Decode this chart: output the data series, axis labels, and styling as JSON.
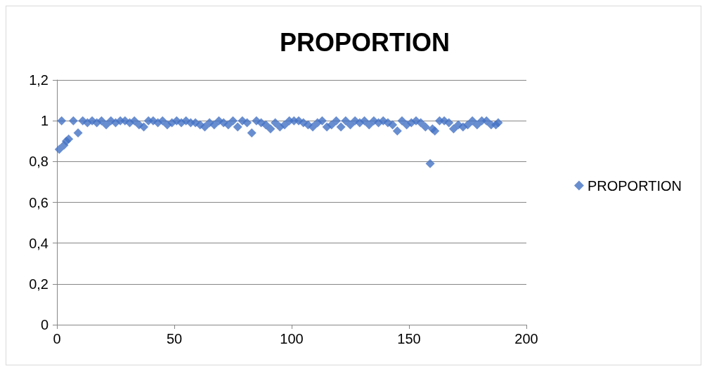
{
  "chart_data": {
    "type": "scatter",
    "title": "PROPORTION",
    "series": [
      {
        "name": "PROPORTION",
        "color": "#4472c4",
        "x": [
          1,
          2,
          3,
          4,
          5,
          7,
          9,
          11,
          13,
          15,
          17,
          19,
          21,
          23,
          25,
          27,
          29,
          31,
          33,
          35,
          37,
          39,
          41,
          43,
          45,
          47,
          49,
          51,
          53,
          55,
          57,
          59,
          61,
          63,
          65,
          67,
          69,
          71,
          73,
          75,
          77,
          79,
          81,
          83,
          85,
          87,
          89,
          91,
          93,
          95,
          97,
          99,
          101,
          103,
          105,
          107,
          109,
          111,
          113,
          115,
          117,
          119,
          121,
          123,
          125,
          127,
          129,
          131,
          133,
          135,
          137,
          139,
          141,
          143,
          145,
          147,
          149,
          151,
          153,
          155,
          157,
          159,
          160,
          161,
          163,
          165,
          167,
          169,
          171,
          173,
          175,
          177,
          179,
          181,
          183,
          185,
          187,
          188
        ],
        "values": [
          0.86,
          1,
          0.88,
          0.9,
          0.91,
          1,
          0.94,
          1,
          0.99,
          1,
          0.99,
          1,
          0.98,
          1,
          0.99,
          1,
          1,
          0.99,
          1,
          0.98,
          0.97,
          1,
          1,
          0.99,
          1,
          0.98,
          0.99,
          1,
          0.99,
          1,
          0.99,
          0.99,
          0.98,
          0.97,
          0.99,
          0.98,
          1,
          0.99,
          0.98,
          1,
          0.97,
          1,
          0.99,
          0.94,
          1,
          0.99,
          0.98,
          0.96,
          0.99,
          0.97,
          0.98,
          1,
          1,
          1,
          0.99,
          0.98,
          0.97,
          0.99,
          1,
          0.97,
          0.98,
          1,
          0.97,
          1,
          0.98,
          1,
          0.99,
          1,
          0.98,
          1,
          0.99,
          1,
          0.99,
          0.98,
          0.95,
          1,
          0.98,
          0.99,
          1,
          0.99,
          0.97,
          0.79,
          0.96,
          0.95,
          1,
          1,
          0.99,
          0.96,
          0.98,
          0.97,
          0.98,
          1,
          0.98,
          1,
          1,
          0.98,
          0.98,
          0.99
        ]
      }
    ],
    "xlim": [
      0,
      200
    ],
    "xticks": [
      0,
      50,
      100,
      150,
      200
    ],
    "ylim": [
      0,
      1.2
    ],
    "yticks": [
      0,
      {
        "value": 0.2,
        "label": "0,2"
      },
      {
        "value": 0.4,
        "label": "0,4"
      },
      {
        "value": 0.6,
        "label": "0,6"
      },
      {
        "value": 0.8,
        "label": "0,8"
      },
      1,
      {
        "value": 1.2,
        "label": "1,2"
      }
    ],
    "grid": "y",
    "legend": "right",
    "marker": "diamond"
  }
}
